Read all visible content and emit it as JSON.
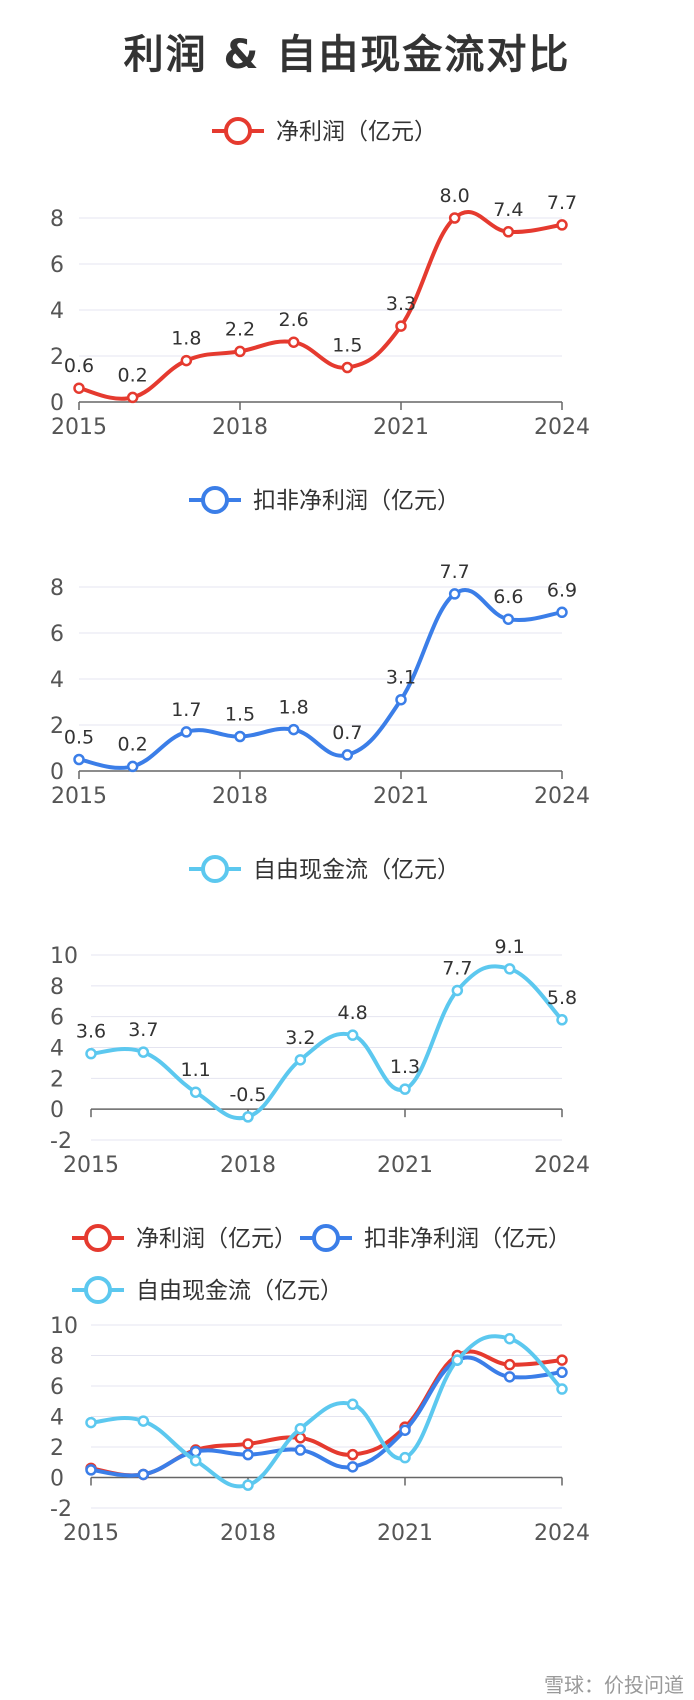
{
  "title": "利润 & 自由现金流对比",
  "colors": {
    "net_profit": "#e53a2f",
    "deducted_profit": "#3b7ee8",
    "fcf": "#5cc8ef"
  },
  "chart_data": [
    {
      "type": "line",
      "x": [
        "2015",
        "2016",
        "2017",
        "2018",
        "2019",
        "2020",
        "2021",
        "2022",
        "2023",
        "2024"
      ],
      "xticks": [
        "2015",
        "2018",
        "2021",
        "2024"
      ],
      "yticks": [
        "0",
        "2",
        "4",
        "6",
        "8"
      ],
      "ylim": [
        0,
        8
      ],
      "series": [
        {
          "name": "净利润（亿元）",
          "color": "#e53a2f",
          "values": [
            0.6,
            0.2,
            1.8,
            2.2,
            2.6,
            1.5,
            3.3,
            8.0,
            7.4,
            7.7
          ],
          "labels": [
            "0.6",
            "0.2",
            "1.8",
            "2.2",
            "2.6",
            "1.5",
            "3.3",
            "8.0",
            "7.4",
            "7.7"
          ]
        }
      ]
    },
    {
      "type": "line",
      "x": [
        "2015",
        "2016",
        "2017",
        "2018",
        "2019",
        "2020",
        "2021",
        "2022",
        "2023",
        "2024"
      ],
      "xticks": [
        "2015",
        "2018",
        "2021",
        "2024"
      ],
      "yticks": [
        "0",
        "2",
        "4",
        "6",
        "8"
      ],
      "ylim": [
        0,
        8
      ],
      "series": [
        {
          "name": "扣非净利润（亿元）",
          "color": "#3b7ee8",
          "values": [
            0.5,
            0.2,
            1.7,
            1.5,
            1.8,
            0.7,
            3.1,
            7.7,
            6.6,
            6.9
          ],
          "labels": [
            "0.5",
            "0.2",
            "1.7",
            "1.5",
            "1.8",
            "0.7",
            "3.1",
            "7.7",
            "6.6",
            "6.9"
          ]
        }
      ]
    },
    {
      "type": "line",
      "x": [
        "2015",
        "2016",
        "2017",
        "2018",
        "2019",
        "2020",
        "2021",
        "2022",
        "2023",
        "2024"
      ],
      "xticks": [
        "2015",
        "2018",
        "2021",
        "2024"
      ],
      "yticks": [
        "-2",
        "0",
        "2",
        "4",
        "6",
        "8",
        "10"
      ],
      "ylim": [
        -2,
        10
      ],
      "series": [
        {
          "name": "自由现金流（亿元）",
          "color": "#5cc8ef",
          "values": [
            3.6,
            3.7,
            1.1,
            -0.5,
            3.2,
            4.8,
            1.3,
            7.7,
            9.1,
            5.8
          ],
          "labels": [
            "3.6",
            "3.7",
            "1.1",
            "-0.5",
            "3.2",
            "4.8",
            "1.3",
            "7.7",
            "9.1",
            "5.8"
          ]
        }
      ]
    },
    {
      "type": "line",
      "x": [
        "2015",
        "2016",
        "2017",
        "2018",
        "2019",
        "2020",
        "2021",
        "2022",
        "2023",
        "2024"
      ],
      "xticks": [
        "2015",
        "2018",
        "2021",
        "2024"
      ],
      "yticks": [
        "-2",
        "0",
        "2",
        "4",
        "6",
        "8",
        "10"
      ],
      "ylim": [
        -2,
        10
      ],
      "series": [
        {
          "name": "净利润（亿元）",
          "color": "#e53a2f",
          "values": [
            0.6,
            0.2,
            1.8,
            2.2,
            2.6,
            1.5,
            3.3,
            8.0,
            7.4,
            7.7
          ]
        },
        {
          "name": "扣非净利润（亿元）",
          "color": "#3b7ee8",
          "values": [
            0.5,
            0.2,
            1.7,
            1.5,
            1.8,
            0.7,
            3.1,
            7.7,
            6.6,
            6.9
          ]
        },
        {
          "name": "自由现金流（亿元）",
          "color": "#5cc8ef",
          "values": [
            3.6,
            3.7,
            1.1,
            -0.5,
            3.2,
            4.8,
            1.3,
            7.7,
            9.1,
            5.8
          ]
        }
      ]
    }
  ],
  "watermark": "雪球：价投问道"
}
